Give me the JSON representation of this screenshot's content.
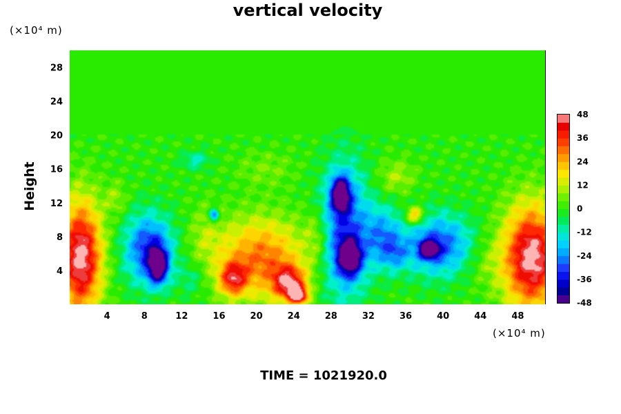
{
  "chart_data": {
    "type": "heatmap",
    "title": "vertical velocity",
    "ylabel": "Height",
    "x_unit_label": "(×10⁴ m)",
    "y_unit_label": "(×10⁴ m)",
    "time_label": "TIME = 1021920.0",
    "xlim": [
      0,
      51
    ],
    "ylim": [
      0,
      30
    ],
    "x_ticks": [
      4,
      8,
      12,
      16,
      20,
      24,
      28,
      32,
      36,
      40,
      44,
      48
    ],
    "y_ticks": [
      4,
      8,
      12,
      16,
      20,
      24,
      28
    ],
    "colorbar": {
      "min": -48,
      "max": 48,
      "ticks": [
        48,
        36,
        24,
        12,
        0,
        -12,
        -24,
        -36,
        -48
      ]
    },
    "background_value": 0,
    "features": [
      {
        "x": 1.2,
        "y": 5.5,
        "rx": 2.2,
        "ry": 6.5,
        "value": 50
      },
      {
        "x": 49.5,
        "y": 5.5,
        "rx": 3.0,
        "ry": 6.0,
        "value": 50
      },
      {
        "x": 20.5,
        "y": 5.5,
        "rx": 4.5,
        "ry": 4.5,
        "value": 30
      },
      {
        "x": 23.5,
        "y": 2.5,
        "rx": 1.8,
        "ry": 2.0,
        "value": 38
      },
      {
        "x": 17.5,
        "y": 3.0,
        "rx": 1.5,
        "ry": 2.0,
        "value": 32
      },
      {
        "x": 24.5,
        "y": 1.0,
        "rx": 1.0,
        "ry": 1.0,
        "value": 42
      },
      {
        "x": 8.5,
        "y": 6.5,
        "rx": 2.5,
        "ry": 4.0,
        "value": -34
      },
      {
        "x": 9.5,
        "y": 4.5,
        "rx": 1.0,
        "ry": 2.0,
        "value": -46
      },
      {
        "x": 29.5,
        "y": 8.5,
        "rx": 2.5,
        "ry": 7.5,
        "value": -32
      },
      {
        "x": 29.0,
        "y": 13.0,
        "rx": 1.0,
        "ry": 2.0,
        "value": -46
      },
      {
        "x": 30.0,
        "y": 5.5,
        "rx": 1.2,
        "ry": 2.0,
        "value": -46
      },
      {
        "x": 33.5,
        "y": 8.0,
        "rx": 2.0,
        "ry": 3.5,
        "value": -22
      },
      {
        "x": 39.5,
        "y": 7.0,
        "rx": 3.5,
        "ry": 3.5,
        "value": -30
      },
      {
        "x": 38.5,
        "y": 6.5,
        "rx": 1.0,
        "ry": 1.0,
        "value": -46
      },
      {
        "x": 14.5,
        "y": 8.0,
        "rx": 1.8,
        "ry": 3.5,
        "value": 8
      },
      {
        "x": 35.0,
        "y": 6.0,
        "rx": 1.5,
        "ry": 2.0,
        "value": -14
      },
      {
        "x": 44.5,
        "y": 5.0,
        "rx": 2.0,
        "ry": 3.0,
        "value": 6
      },
      {
        "x": 13.0,
        "y": 3.0,
        "rx": 1.5,
        "ry": 2.0,
        "value": -8
      },
      {
        "x": 26.5,
        "y": 8.0,
        "rx": 1.2,
        "ry": 3.0,
        "value": 10
      },
      {
        "x": 37.0,
        "y": 10.5,
        "rx": 1.0,
        "ry": 1.0,
        "value": 26
      },
      {
        "x": 15.5,
        "y": 10.5,
        "rx": 0.5,
        "ry": 0.8,
        "value": -30
      },
      {
        "x": 21.0,
        "y": 16.0,
        "rx": 3.0,
        "ry": 2.0,
        "value": 6
      },
      {
        "x": 35.0,
        "y": 15.0,
        "rx": 2.0,
        "ry": 2.0,
        "value": 10
      },
      {
        "x": 13.5,
        "y": 17.0,
        "rx": 1.5,
        "ry": 1.0,
        "value": -12
      },
      {
        "x": 5.0,
        "y": 12.5,
        "rx": 1.2,
        "ry": 2.0,
        "value": 8
      }
    ]
  }
}
